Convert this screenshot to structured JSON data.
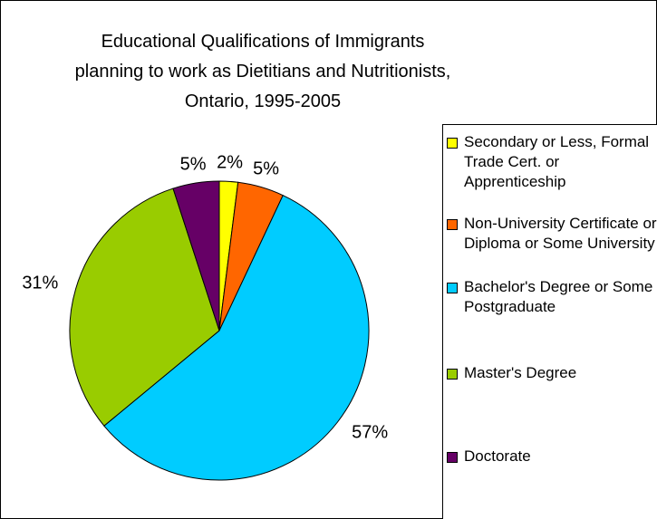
{
  "chart_data": {
    "type": "pie",
    "title": "Educational Qualifications of Immigrants planning to work as Dietitians and Nutritionists, Ontario, 1995-2005",
    "categories": [
      "Secondary or Less, Formal Trade Cert. or Apprenticeship",
      "Non-University Certificate or Diploma or Some University",
      "Bachelor's Degree or Some Postgraduate",
      "Master's Degree",
      "Doctorate"
    ],
    "values": [
      2,
      5,
      57,
      31,
      5
    ],
    "value_labels": [
      "2%",
      "5%",
      "57%",
      "31%",
      "5%"
    ],
    "colors": [
      "#ffff00",
      "#ff6600",
      "#00ccff",
      "#99cc00",
      "#660066"
    ],
    "legend_position": "right"
  }
}
